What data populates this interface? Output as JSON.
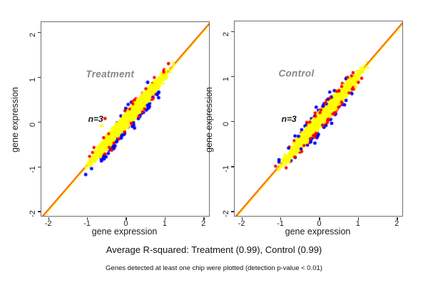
{
  "figure": {
    "background": "#ffffff"
  },
  "captions": {
    "line1": "Average R-squared: Treatment (0.99), Control (0.99)",
    "line2": "Genes detected at least one chip were plotted (detection p-value < 0.01)"
  },
  "colors": {
    "cloud_yellow": "#ffff00",
    "outlier_blue": "#0000ff",
    "outlier_red": "#ff0000",
    "identity_line_red": "#ee2200",
    "identity_line_yellow": "#ffe800",
    "box_gray": "#6e6e6e",
    "tick_text": "#1c1c1c",
    "panel_label_gray": "#878787"
  },
  "chart_data": [
    {
      "type": "scatter",
      "title": "Treatment",
      "annotation": "n=3",
      "xlabel": "gene expression",
      "ylabel": "gene expression",
      "xlim": [
        -2.17,
        2.15
      ],
      "ylim": [
        -2.11,
        2.21
      ],
      "xticks": [
        "-2",
        "-1",
        "0",
        "1",
        "2"
      ],
      "yticks": [
        "-2",
        "-1",
        "0",
        "1",
        "2"
      ],
      "xtick_vals": [
        -2,
        -1,
        0,
        1,
        2
      ],
      "ytick_vals": [
        -2,
        -1,
        0,
        1,
        2
      ],
      "identity_line": "y = x",
      "r_squared": 0.99,
      "title_pos": [
        -0.4,
        1.05
      ],
      "annotation_pos": [
        -0.77,
        0.05
      ],
      "cloud": {
        "center": 0.09,
        "halfspan": 1.27,
        "max_halfwidth": 0.175,
        "n_core": 2300,
        "n_blue": 66,
        "n_red": 44,
        "blue_below_frac": 0.85,
        "red_below_frac": 0.5,
        "seed": 7
      },
      "extra_points": [
        {
          "color": "red",
          "x": -0.53,
          "y": 0.06
        },
        {
          "color": "yellow",
          "x": -0.62,
          "y": -0.1
        },
        {
          "color": "blue",
          "x": 0.6,
          "y": 0.3
        }
      ]
    },
    {
      "type": "scatter",
      "title": "Control",
      "annotation": "n=3",
      "xlabel": "gene expression",
      "ylabel": "gene expression",
      "xlim": [
        -2.17,
        2.15
      ],
      "ylim": [
        -2.11,
        2.21
      ],
      "xticks": [
        "-2",
        "-1",
        "0",
        "1",
        "2"
      ],
      "yticks": [
        "-2",
        "-1",
        "0",
        "1",
        "2"
      ],
      "xtick_vals": [
        -2,
        -1,
        0,
        1,
        2
      ],
      "ytick_vals": [
        -2,
        -1,
        0,
        1,
        2
      ],
      "identity_line": "y = x",
      "r_squared": 0.99,
      "title_pos": [
        -0.58,
        1.05
      ],
      "annotation_pos": [
        -0.77,
        0.05
      ],
      "cloud": {
        "center": 0.09,
        "halfspan": 1.27,
        "max_halfwidth": 0.175,
        "n_core": 2300,
        "n_blue": 58,
        "n_red": 78,
        "blue_below_frac": 0.55,
        "red_below_frac": 0.6,
        "seed": 13
      },
      "extra_points": [
        {
          "color": "blue",
          "x": 0.28,
          "y": 0.64
        },
        {
          "color": "yellow",
          "x": 0.95,
          "y": 0.75
        }
      ]
    }
  ]
}
